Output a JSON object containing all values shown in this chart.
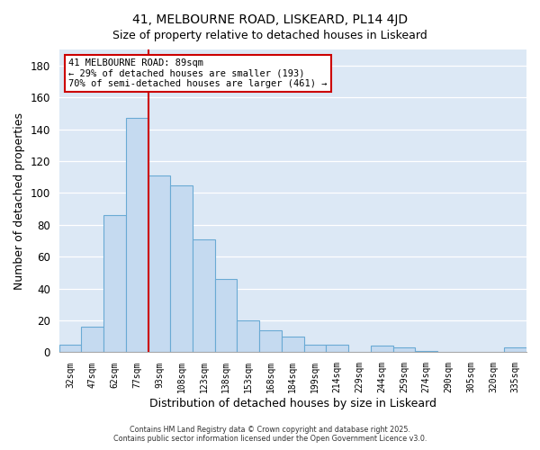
{
  "title": "41, MELBOURNE ROAD, LISKEARD, PL14 4JD",
  "subtitle": "Size of property relative to detached houses in Liskeard",
  "xlabel": "Distribution of detached houses by size in Liskeard",
  "ylabel": "Number of detached properties",
  "bar_labels": [
    "32sqm",
    "47sqm",
    "62sqm",
    "77sqm",
    "93sqm",
    "108sqm",
    "123sqm",
    "138sqm",
    "153sqm",
    "168sqm",
    "184sqm",
    "199sqm",
    "214sqm",
    "229sqm",
    "244sqm",
    "259sqm",
    "274sqm",
    "290sqm",
    "305sqm",
    "320sqm",
    "335sqm"
  ],
  "bar_values": [
    5,
    16,
    86,
    147,
    111,
    105,
    71,
    46,
    20,
    14,
    10,
    5,
    5,
    0,
    4,
    3,
    1,
    0,
    0,
    0,
    3
  ],
  "bar_color": "#c5daf0",
  "bar_edge_color": "#6aaad4",
  "vline_color": "#cc0000",
  "annotation_title": "41 MELBOURNE ROAD: 89sqm",
  "annotation_line1": "← 29% of detached houses are smaller (193)",
  "annotation_line2": "70% of semi-detached houses are larger (461) →",
  "annotation_box_color": "#ffffff",
  "annotation_box_edge": "#cc0000",
  "ylim": [
    0,
    190
  ],
  "yticks": [
    0,
    20,
    40,
    60,
    80,
    100,
    120,
    140,
    160,
    180
  ],
  "footer1": "Contains HM Land Registry data © Crown copyright and database right 2025.",
  "footer2": "Contains public sector information licensed under the Open Government Licence v3.0.",
  "bg_color": "#dce8f5",
  "fig_bg_color": "#ffffff",
  "grid_color": "#ffffff"
}
